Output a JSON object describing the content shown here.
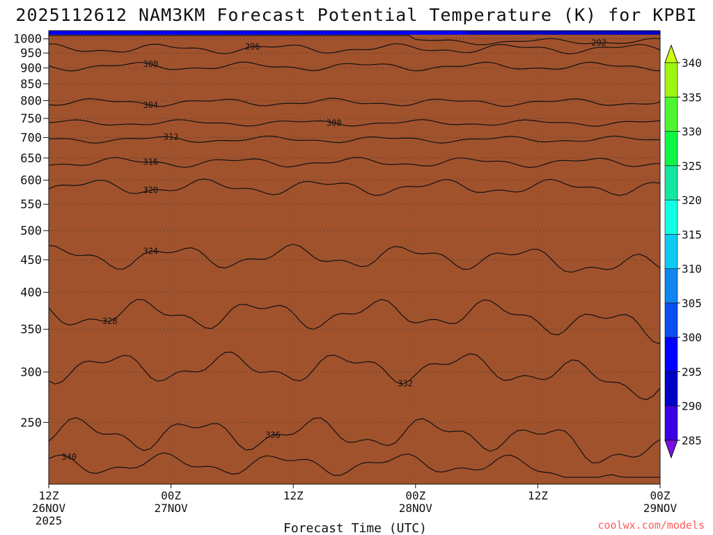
{
  "chart_data": {
    "type": "heatmap",
    "title": "2025112612 NAM3KM Forecast Potential Temperature (K) for KPBI",
    "xlabel": "Forecast Time (UTC)",
    "ylabel": "",
    "x_ticks": [
      {
        "hour": 0,
        "line1": "12Z",
        "line2": "26NOV",
        "line3": "2025"
      },
      {
        "hour": 12,
        "line1": "00Z",
        "line2": "27NOV",
        "line3": ""
      },
      {
        "hour": 24,
        "line1": "12Z",
        "line2": "",
        "line3": ""
      },
      {
        "hour": 36,
        "line1": "00Z",
        "line2": "28NOV",
        "line3": ""
      },
      {
        "hour": 48,
        "line1": "12Z",
        "line2": "",
        "line3": ""
      },
      {
        "hour": 60,
        "line1": "00Z",
        "line2": "29NOV",
        "line3": ""
      }
    ],
    "xlim": [
      0,
      60
    ],
    "y_scale": "log-pressure",
    "ylim": [
      1030,
      200
    ],
    "y_ticks": [
      250,
      300,
      350,
      400,
      450,
      500,
      550,
      600,
      650,
      700,
      750,
      800,
      850,
      900,
      950,
      1000
    ],
    "grid": true,
    "colorbar": {
      "levels": [
        285,
        290,
        295,
        300,
        305,
        310,
        315,
        320,
        325,
        330,
        335,
        340
      ],
      "colors": [
        "#7a10e6",
        "#3c00e6",
        "#0000c8",
        "#0000ff",
        "#0b4ff0",
        "#0f86f0",
        "#0ccaf2",
        "#10ffe6",
        "#14e6a4",
        "#0ff546",
        "#4cf52f",
        "#9ef50f",
        "#ccff0b"
      ],
      "extend": "both"
    },
    "contours": [
      {
        "value": 292,
        "label": "292",
        "base_p": 990,
        "amp": 8,
        "label_hour": 54
      },
      {
        "value": 296,
        "label": "296",
        "base_p": 965,
        "amp": 12,
        "label_hour": 20
      },
      {
        "value": 300,
        "label": "300",
        "base_p": 905,
        "amp": 10,
        "label_hour": 10
      },
      {
        "value": 304,
        "label": "304",
        "base_p": 795,
        "amp": 8,
        "label_hour": 10
      },
      {
        "value": 308,
        "label": "308",
        "base_p": 738,
        "amp": 6,
        "label_hour": 28
      },
      {
        "value": 312,
        "label": "312",
        "base_p": 695,
        "amp": 6,
        "label_hour": 12
      },
      {
        "value": 316,
        "label": "316",
        "base_p": 640,
        "amp": 8,
        "label_hour": 10
      },
      {
        "value": 320,
        "label": "320",
        "base_p": 585,
        "amp": 12,
        "label_hour": 10
      },
      {
        "value": 324,
        "label": "324",
        "base_p": 455,
        "amp": 14,
        "label_hour": 10
      },
      {
        "value": 328,
        "label": "328",
        "base_p": 370,
        "amp": 14,
        "label_hour": 6
      },
      {
        "value": 332,
        "label": "332",
        "base_p": 305,
        "amp": 12,
        "label_hour": 35
      },
      {
        "value": 336,
        "label": "336",
        "base_p": 240,
        "amp": 10,
        "label_hour": 22
      },
      {
        "value": 340,
        "label": "340",
        "base_p": 215,
        "amp": 6,
        "label_hour": 2
      }
    ],
    "ground_below_hpa": 1015
  },
  "credit": "coolwx.com/models"
}
